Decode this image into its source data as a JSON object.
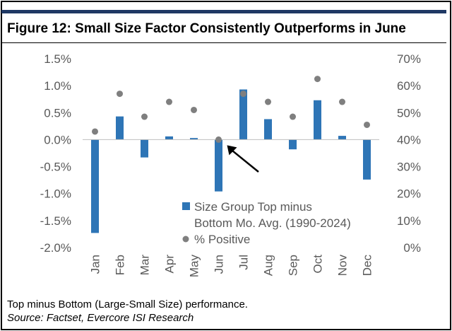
{
  "title": "Figure 12: Small Size Factor Consistently Outperforms in June",
  "footnote": "Top minus Bottom (Large-Small Size) performance.",
  "source": "Source: Factset, Evercore ISI Research",
  "colors": {
    "bar": "#2e75b6",
    "dot": "#7f7f7f",
    "header_bar": "#1f3864",
    "axis_text": "#595959"
  },
  "chart_data": {
    "type": "bar",
    "categories": [
      "Jan",
      "Feb",
      "Mar",
      "Apr",
      "May",
      "Jun",
      "Jul",
      "Aug",
      "Sep",
      "Oct",
      "Nov",
      "Dec"
    ],
    "series": [
      {
        "name": "Size Group Top minus Bottom Mo. Avg. (1990-2024)",
        "type": "bar",
        "axis": "left",
        "values": [
          -1.73,
          0.43,
          -0.33,
          0.06,
          0.03,
          -0.96,
          0.93,
          0.38,
          -0.18,
          0.73,
          0.07,
          -0.74
        ]
      },
      {
        "name": "% Positive",
        "type": "scatter",
        "axis": "right",
        "values": [
          43,
          57,
          48.5,
          54,
          51,
          40,
          57,
          54,
          48.5,
          62.5,
          54,
          45.5
        ]
      }
    ],
    "y_left": {
      "min": -2.0,
      "max": 1.5,
      "step": 0.5,
      "ticks": [
        "1.5%",
        "1.0%",
        "0.5%",
        "0.0%",
        "-0.5%",
        "-1.0%",
        "-1.5%",
        "-2.0%"
      ]
    },
    "y_right": {
      "min": 0,
      "max": 70,
      "step": 10,
      "ticks": [
        "70%",
        "60%",
        "50%",
        "40%",
        "30%",
        "20%",
        "10%",
        "0%"
      ]
    },
    "legend": {
      "bar_label_line1": "Size Group Top minus",
      "bar_label_line2": "Bottom Mo. Avg. (1990-2024)",
      "dot_label": "% Positive"
    },
    "annotation": {
      "type": "arrow",
      "target": "Jun"
    }
  }
}
